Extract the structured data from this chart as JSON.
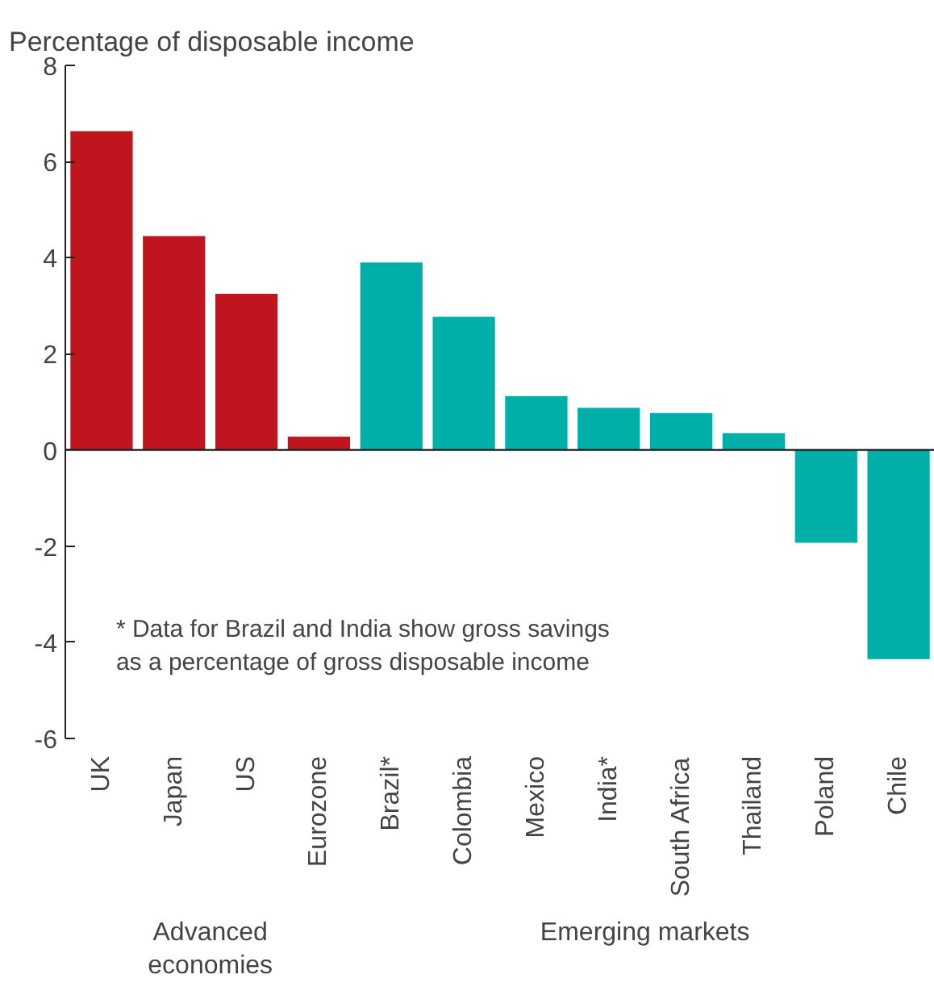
{
  "chart_data": {
    "type": "bar",
    "ylabel": "Percentage of disposable income",
    "categories": [
      "UK",
      "Japan",
      "US",
      "Eurozone",
      "Brazil*",
      "Colombia",
      "Mexico",
      "India*",
      "South Africa",
      "Thailand",
      "Poland",
      "Chile"
    ],
    "values": [
      6.63,
      4.45,
      3.25,
      0.28,
      3.9,
      2.77,
      1.12,
      0.88,
      0.77,
      0.35,
      -1.93,
      -4.35
    ],
    "colors": [
      "#c0151f",
      "#c0151f",
      "#c0151f",
      "#c0151f",
      "#00b0a8",
      "#00b0a8",
      "#00b0a8",
      "#00b0a8",
      "#00b0a8",
      "#00b0a8",
      "#00b0a8",
      "#00b0a8"
    ],
    "ylim": [
      -6,
      8
    ],
    "yticks": [
      -6,
      -4,
      -2,
      0,
      2,
      4,
      6,
      8
    ],
    "annotations": [
      "* Data for Brazil and India show gross savings\n   as a percentage of gross disposable income",
      "Advanced\neconomies",
      "Emerging markets"
    ]
  }
}
